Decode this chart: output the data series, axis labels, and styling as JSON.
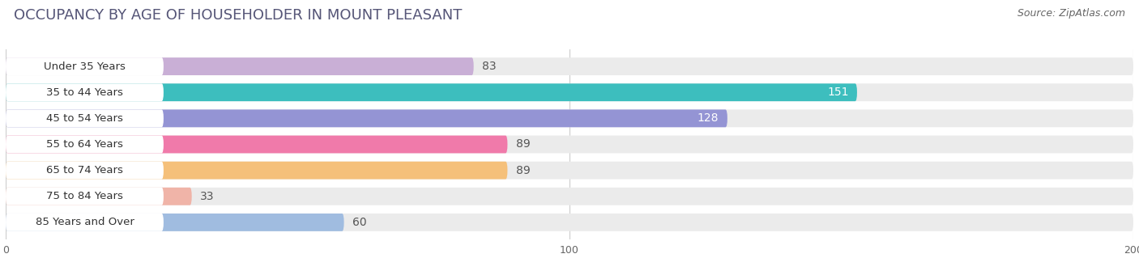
{
  "title": "OCCUPANCY BY AGE OF HOUSEHOLDER IN MOUNT PLEASANT",
  "source": "Source: ZipAtlas.com",
  "categories": [
    "Under 35 Years",
    "35 to 44 Years",
    "45 to 54 Years",
    "55 to 64 Years",
    "65 to 74 Years",
    "75 to 84 Years",
    "85 Years and Over"
  ],
  "values": [
    83,
    151,
    128,
    89,
    89,
    33,
    60
  ],
  "bar_colors": [
    "#c9afd6",
    "#3dbebe",
    "#9494d4",
    "#f07aaa",
    "#f5c07a",
    "#f0b4a8",
    "#a0bce0"
  ],
  "label_inside": [
    false,
    true,
    true,
    false,
    false,
    false,
    false
  ],
  "label_text_color_inside": "#ffffff",
  "label_text_color_outside": "#555555",
  "xlim": [
    0,
    200
  ],
  "xticks": [
    0,
    100,
    200
  ],
  "title_fontsize": 13,
  "source_fontsize": 9,
  "bar_label_fontsize": 10,
  "category_fontsize": 9.5,
  "background_color": "#ffffff",
  "bar_bg_color": "#ebebeb",
  "fig_width": 14.06,
  "fig_height": 3.4
}
